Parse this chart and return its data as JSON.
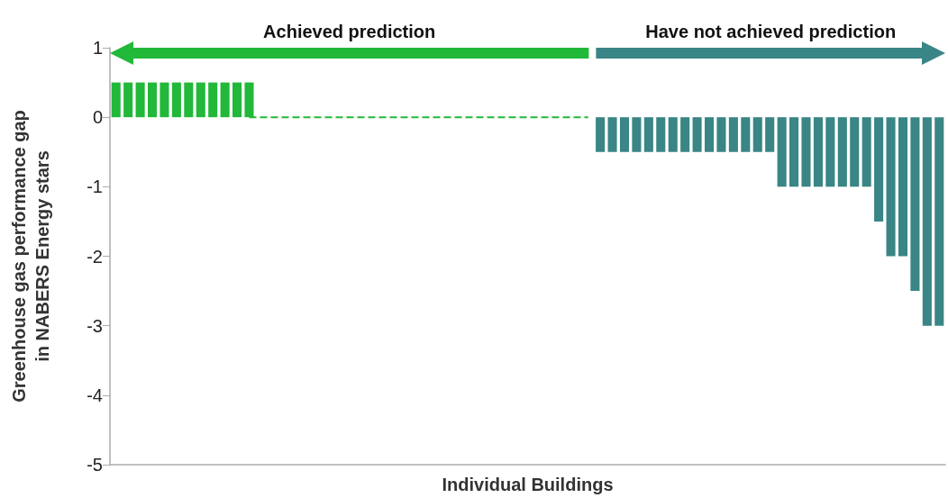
{
  "chart_data": {
    "type": "bar",
    "xlabel": "Individual Buildings",
    "ylabel": "Greenhouse gas performance gap\nin NABERS Energy stars",
    "annotations": [
      "Achieved prediction",
      "Have not achieved prediction"
    ],
    "categories": [
      null,
      null,
      null,
      null,
      null,
      null,
      null,
      null,
      null,
      null,
      null,
      null,
      null,
      null,
      null,
      null,
      null,
      null,
      null,
      null,
      null,
      null,
      null,
      null,
      null,
      null,
      null,
      null,
      null,
      null,
      null,
      null,
      null,
      null,
      null,
      null,
      null,
      null,
      null,
      null,
      null,
      null,
      null,
      null,
      null,
      null,
      null,
      null,
      null,
      null,
      null,
      null,
      null,
      null,
      null,
      null,
      null,
      null,
      null,
      null,
      null,
      null,
      null,
      null,
      null,
      null,
      null,
      null,
      null
    ],
    "series": [
      {
        "color": "#22b83a",
        "values": [
          0.5,
          0.5,
          0.5,
          0.5,
          0.5,
          0.5,
          0.5,
          0.5,
          0.5,
          0.5,
          0.5,
          0.5,
          null,
          null,
          null,
          null,
          null,
          null,
          null,
          null,
          null,
          null,
          null,
          null,
          null,
          null,
          null,
          null,
          null,
          null,
          null,
          null,
          null,
          null,
          null,
          null,
          null,
          null,
          null,
          null,
          null,
          null,
          null,
          null,
          null,
          null,
          null,
          null,
          null,
          null,
          null,
          null,
          null,
          null,
          null,
          null,
          null,
          null,
          null,
          null,
          null,
          null,
          null,
          null,
          null,
          null,
          null,
          null,
          null
        ]
      },
      {
        "type": "line",
        "color": "#22b83a",
        "line_style": "dashed",
        "marker": "none",
        "values": [
          null,
          null,
          null,
          null,
          null,
          null,
          null,
          null,
          null,
          null,
          null,
          0,
          0,
          0,
          0,
          0,
          0,
          0,
          0,
          0,
          0,
          0,
          0,
          0,
          0,
          0,
          0,
          0,
          0,
          0,
          0,
          0,
          0,
          0,
          0,
          0,
          0,
          0,
          0,
          0,
          null,
          null,
          null,
          null,
          null,
          null,
          null,
          null,
          null,
          null,
          null,
          null,
          null,
          null,
          null,
          null,
          null,
          null,
          null,
          null,
          null,
          null,
          null,
          null,
          null,
          null,
          null,
          null,
          null
        ]
      },
      {
        "color": "#3a8585",
        "values": [
          null,
          null,
          null,
          null,
          null,
          null,
          null,
          null,
          null,
          null,
          null,
          null,
          null,
          null,
          null,
          null,
          null,
          null,
          null,
          null,
          null,
          null,
          null,
          null,
          null,
          null,
          null,
          null,
          null,
          null,
          null,
          null,
          null,
          null,
          null,
          null,
          null,
          null,
          null,
          null,
          -0.5,
          -0.5,
          -0.5,
          -0.5,
          -0.5,
          -0.5,
          -0.5,
          -0.5,
          -0.5,
          -0.5,
          -0.5,
          -0.5,
          -0.5,
          -0.5,
          -0.5,
          -1,
          -1,
          -1,
          -1,
          -1,
          -1,
          -1,
          -1,
          -1.5,
          -2,
          -2,
          -2.5,
          -3,
          -3
        ]
      }
    ],
    "ylim": [
      -5,
      1
    ],
    "yticks": [
      -5,
      -4,
      -3,
      -2,
      -1,
      0,
      1
    ],
    "tick_labels": "y"
  }
}
